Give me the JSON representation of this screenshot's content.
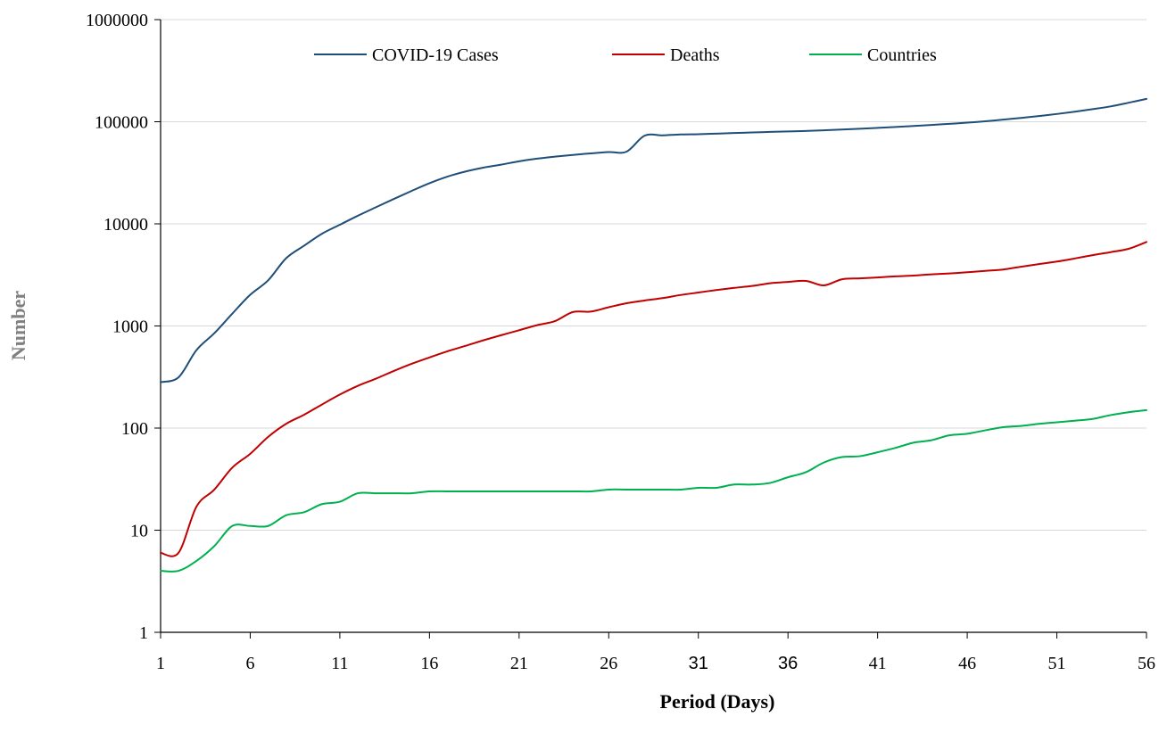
{
  "chart_data": {
    "type": "line",
    "title": "",
    "xlabel": "Period (Days)",
    "ylabel": "Number",
    "yscale": "log",
    "ylim": [
      1,
      1000000
    ],
    "xlim": [
      1,
      56
    ],
    "grid": "horizontal",
    "legend_position": "top-center",
    "y_ticks": [
      1,
      10,
      100,
      1000,
      10000,
      100000,
      1000000
    ],
    "y_tick_labels": [
      "1",
      "10",
      "100",
      "1000",
      "10000",
      "100000",
      "1000000"
    ],
    "x_ticks": [
      1,
      6,
      11,
      16,
      21,
      26,
      31,
      36,
      41,
      46,
      51,
      56
    ],
    "x_tick_labels": [
      "1",
      "6",
      "11",
      "16",
      "21",
      "26",
      "31",
      "36",
      "41",
      "46",
      "51",
      "56"
    ],
    "x": [
      1,
      2,
      3,
      4,
      5,
      6,
      7,
      8,
      9,
      10,
      11,
      12,
      13,
      14,
      15,
      16,
      17,
      18,
      19,
      20,
      21,
      22,
      23,
      24,
      25,
      26,
      27,
      28,
      29,
      30,
      31,
      32,
      33,
      34,
      35,
      36,
      37,
      38,
      39,
      40,
      41,
      42,
      43,
      44,
      45,
      46,
      47,
      48,
      49,
      50,
      51,
      52,
      53,
      54,
      55,
      56
    ],
    "series": [
      {
        "name": "COVID-19 Cases",
        "color": "#1f4e79",
        "values": [
          282,
          314,
          580,
          850,
          1320,
          2020,
          2800,
          4600,
          6100,
          8000,
          9800,
          12000,
          14500,
          17500,
          21000,
          25000,
          29000,
          32500,
          35500,
          38000,
          41000,
          43500,
          45500,
          47300,
          49000,
          50500,
          51000,
          73000,
          73500,
          75000,
          75500,
          76500,
          77500,
          78500,
          79500,
          80300,
          81200,
          82400,
          83800,
          85400,
          87100,
          88800,
          90800,
          93000,
          95300,
          97900,
          101000,
          104800,
          108900,
          113700,
          119100,
          125500,
          132800,
          141300,
          153500,
          167500
        ]
      },
      {
        "name": "Deaths",
        "color": "#c00000",
        "values": [
          6,
          6,
          17,
          25,
          41,
          56,
          82,
          110,
          135,
          170,
          213,
          259,
          304,
          362,
          426,
          492,
          565,
          638,
          723,
          812,
          908,
          1018,
          1115,
          1369,
          1383,
          1526,
          1669,
          1775,
          1873,
          2009,
          2126,
          2247,
          2360,
          2464,
          2620,
          2701,
          2763,
          2497,
          2862,
          2924,
          2987,
          3062,
          3115,
          3201,
          3268,
          3355,
          3464,
          3569,
          3803,
          4037,
          4272,
          4582,
          4939,
          5283,
          5697,
          6640
        ]
      },
      {
        "name": "Countries",
        "color": "#00b050",
        "values": [
          4,
          4,
          5,
          7,
          11,
          11,
          11,
          14,
          15,
          18,
          19,
          23,
          23,
          23,
          23,
          24,
          24,
          24,
          24,
          24,
          24,
          24,
          24,
          24,
          24,
          25,
          25,
          25,
          25,
          25,
          26,
          26,
          28,
          28,
          29,
          33,
          37,
          46,
          52,
          53,
          58,
          64,
          72,
          76,
          85,
          88,
          95,
          102,
          105,
          110,
          114,
          118,
          123,
          134,
          143,
          150
        ]
      }
    ]
  }
}
